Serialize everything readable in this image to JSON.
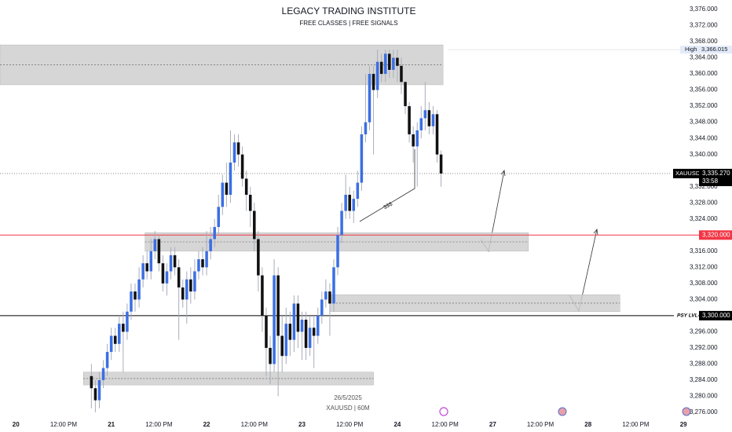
{
  "chart_data": {
    "type": "candlestick",
    "title": "LEGACY TRADING INSTITUTE",
    "subtitle": "FREE CLASSES | FREE SIGNALS",
    "footer_date": "26/5/2025",
    "footer_symbol": "XAUUSD | 60M",
    "annotation": "$$$",
    "up_color": "#3b6fe3",
    "down_color": "#111111",
    "wick_color": "#a8adbb",
    "xlim": [
      -28,
      141
    ],
    "ylim": [
      3276,
      3376
    ],
    "xticks": [
      {
        "value": -24,
        "label": "20"
      },
      {
        "value": -12,
        "label": "12:00 PM"
      },
      {
        "value": 0,
        "label": "21"
      },
      {
        "value": 12,
        "label": "12:00 PM"
      },
      {
        "value": 24,
        "label": "22"
      },
      {
        "value": 36,
        "label": "12:00 PM"
      },
      {
        "value": 48,
        "label": "23"
      },
      {
        "value": 60,
        "label": "12:00 PM"
      },
      {
        "value": 72,
        "label": "24"
      },
      {
        "value": 84,
        "label": "12:00 PM"
      },
      {
        "value": 96,
        "label": "27"
      },
      {
        "value": 108,
        "label": "12:00 PM"
      },
      {
        "value": 120,
        "label": "28"
      },
      {
        "value": 132,
        "label": "12:00 PM"
      },
      {
        "value": 144,
        "label": "29"
      }
    ],
    "yticks": [
      {
        "value": 3376,
        "label": "3,376.000"
      },
      {
        "value": 3372,
        "label": "3,372.000"
      },
      {
        "value": 3368,
        "label": "3,368.000"
      },
      {
        "value": 3364,
        "label": "3,364.000"
      },
      {
        "value": 3360,
        "label": "3,360.000"
      },
      {
        "value": 3356,
        "label": "3,356.000"
      },
      {
        "value": 3352,
        "label": "3,352.000"
      },
      {
        "value": 3348,
        "label": "3,348.000"
      },
      {
        "value": 3344,
        "label": "3,344.000"
      },
      {
        "value": 3340,
        "label": "3,340.000"
      },
      {
        "value": 3332,
        "label": "3,332.000"
      },
      {
        "value": 3328,
        "label": "3,328.000"
      },
      {
        "value": 3324,
        "label": "3,324.000"
      },
      {
        "value": 3316,
        "label": "3,316.000"
      },
      {
        "value": 3312,
        "label": "3,312.000"
      },
      {
        "value": 3308,
        "label": "3,308.000"
      },
      {
        "value": 3304,
        "label": "3,304.000"
      },
      {
        "value": 3296,
        "label": "3,296.000"
      },
      {
        "value": 3292,
        "label": "3,292.000"
      },
      {
        "value": 3288,
        "label": "3,288.000"
      },
      {
        "value": 3284,
        "label": "3,284.000"
      },
      {
        "value": 3280,
        "label": "3,280.000"
      },
      {
        "value": 3276,
        "label": "3,276.000"
      }
    ],
    "x": [
      -5,
      -4,
      -3,
      -2,
      -1,
      0,
      1,
      2,
      3,
      4,
      5,
      6,
      7,
      8,
      9,
      10,
      11,
      12,
      13,
      14,
      15,
      16,
      17,
      18,
      19,
      20,
      21,
      22,
      23,
      24,
      25,
      26,
      27,
      28,
      29,
      30,
      31,
      32,
      33,
      34,
      35,
      36,
      37,
      38,
      39,
      40,
      41,
      42,
      43,
      44,
      45,
      46,
      47,
      48,
      49,
      50,
      51,
      52,
      53,
      54,
      55,
      56,
      57,
      58,
      59,
      60,
      61,
      62,
      63,
      64,
      65,
      66,
      67,
      68,
      69,
      70,
      71,
      72,
      73,
      74,
      75,
      76,
      77,
      78,
      79,
      80,
      81,
      82,
      83
    ],
    "open": [
      3285,
      3282,
      3279,
      3284,
      3287,
      3291,
      3295,
      3293,
      3298,
      3296,
      3301,
      3306,
      3304,
      3309,
      3313,
      3311,
      3316,
      3319,
      3313,
      3308,
      3311,
      3315,
      3312,
      3307,
      3304,
      3309,
      3306,
      3311,
      3314,
      3312,
      3316,
      3319,
      3322,
      3327,
      3333,
      3330,
      3338,
      3343,
      3340,
      3334,
      3330,
      3326,
      3319,
      3310,
      3300,
      3292,
      3288,
      3310,
      3295,
      3290,
      3298,
      3294,
      3303,
      3296,
      3299,
      3292,
      3297,
      3295,
      3300,
      3304,
      3306,
      3303,
      3312,
      3320,
      3326,
      3330,
      3326,
      3329,
      3333,
      3345,
      3348,
      3360,
      3356,
      3363,
      3360,
      3365,
      3361,
      3364,
      3362,
      3358,
      3352,
      3345,
      3342,
      3346,
      3349,
      3351,
      3347,
      3350,
      3340
    ],
    "high": [
      3288,
      3284,
      3286,
      3289,
      3293,
      3297,
      3297,
      3300,
      3301,
      3303,
      3308,
      3308,
      3312,
      3315,
      3316,
      3319,
      3321,
      3320,
      3315,
      3313,
      3317,
      3317,
      3314,
      3309,
      3311,
      3312,
      3314,
      3316,
      3317,
      3321,
      3322,
      3324,
      3330,
      3335,
      3338,
      3346,
      3345,
      3345,
      3342,
      3336,
      3332,
      3328,
      3321,
      3312,
      3302,
      3295,
      3314,
      3312,
      3300,
      3302,
      3301,
      3305,
      3305,
      3301,
      3301,
      3300,
      3300,
      3302,
      3306,
      3309,
      3308,
      3314,
      3322,
      3328,
      3335,
      3332,
      3331,
      3336,
      3347,
      3360,
      3362,
      3362,
      3366,
      3365,
      3366,
      3366,
      3366,
      3366,
      3364,
      3358,
      3353,
      3347,
      3348,
      3352,
      3358,
      3353,
      3352,
      3351,
      3341
    ],
    "low": [
      3277,
      3276,
      3277,
      3282,
      3285,
      3289,
      3291,
      3291,
      3286,
      3294,
      3299,
      3301,
      3302,
      3307,
      3309,
      3309,
      3314,
      3311,
      3306,
      3305,
      3309,
      3310,
      3294,
      3302,
      3298,
      3303,
      3304,
      3309,
      3310,
      3310,
      3314,
      3317,
      3320,
      3325,
      3327,
      3328,
      3336,
      3337,
      3332,
      3326,
      3322,
      3316,
      3306,
      3296,
      3285,
      3283,
      3286,
      3280,
      3286,
      3288,
      3290,
      3291,
      3292,
      3289,
      3289,
      3290,
      3287,
      3293,
      3298,
      3302,
      3295,
      3301,
      3310,
      3318,
      3324,
      3324,
      3323,
      3327,
      3331,
      3343,
      3346,
      3340,
      3354,
      3358,
      3358,
      3359,
      3359,
      3358,
      3355,
      3350,
      3343,
      3338,
      3332,
      3344,
      3346,
      3345,
      3345,
      3338,
      3332
    ],
    "close": [
      3282,
      3279,
      3284,
      3287,
      3291,
      3295,
      3293,
      3298,
      3296,
      3301,
      3306,
      3304,
      3309,
      3313,
      3311,
      3316,
      3319,
      3313,
      3308,
      3311,
      3315,
      3312,
      3307,
      3304,
      3309,
      3306,
      3311,
      3314,
      3312,
      3316,
      3319,
      3322,
      3327,
      3333,
      3330,
      3338,
      3343,
      3340,
      3334,
      3330,
      3326,
      3319,
      3310,
      3300,
      3292,
      3288,
      3310,
      3295,
      3290,
      3298,
      3294,
      3303,
      3296,
      3299,
      3292,
      3297,
      3295,
      3300,
      3304,
      3306,
      3303,
      3312,
      3320,
      3326,
      3330,
      3326,
      3329,
      3333,
      3345,
      3348,
      3360,
      3356,
      3363,
      3360,
      3365,
      3361,
      3364,
      3362,
      3358,
      3352,
      3345,
      3342,
      3346,
      3349,
      3351,
      3347,
      3350,
      3340,
      3335.27
    ],
    "zones": [
      {
        "ylim": [
          3357.3,
          3367.2
        ],
        "xlim": [
          -28,
          83.5
        ]
      },
      {
        "ylim": [
          3316,
          3320.6
        ],
        "xlim": [
          8.5,
          105
        ]
      },
      {
        "ylim": [
          3301,
          3305.2
        ],
        "xlim": [
          55,
          128
        ]
      },
      {
        "ylim": [
          3282.8,
          3286
        ],
        "xlim": [
          -7,
          66
        ]
      }
    ],
    "levels": [
      {
        "value": 3320,
        "label": "3,320.000",
        "color": "#f23645"
      },
      {
        "name": "PSY LVL",
        "value": 3300,
        "label": "3,300.000",
        "color": "#000000"
      }
    ],
    "high_marker": {
      "name": "High",
      "value": 3366.015,
      "label": "3,366.015"
    },
    "last_price": {
      "name": "XAUUSD",
      "value": 3335.27,
      "label": "3,335.270",
      "countdown": "33:58"
    }
  }
}
